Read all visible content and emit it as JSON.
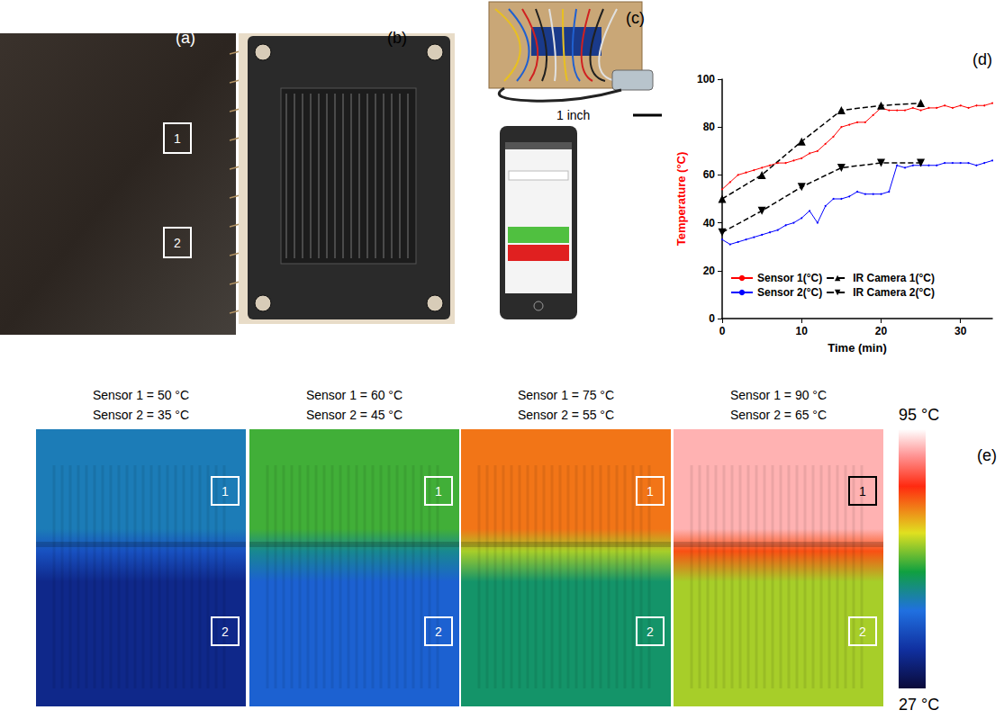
{
  "chart_data": {
    "type": "line",
    "x_label": "Time (min)",
    "y_label": "Temperature (°C)",
    "xlim": [
      0,
      34
    ],
    "xticks": [
      0,
      10,
      20,
      30
    ],
    "ylim": [
      0,
      100
    ],
    "yticks": [
      0,
      20,
      40,
      60,
      80,
      100
    ],
    "grid": false,
    "legend": "lower left",
    "series": [
      {
        "name": "Sensor 1(°C)",
        "color": "#ff0000",
        "marker": "circle",
        "line_style": "solid",
        "x": [
          0,
          1,
          2,
          3,
          4,
          5,
          6,
          7,
          8,
          9,
          10,
          11,
          12,
          13,
          14,
          15,
          16,
          17,
          18,
          19,
          20,
          21,
          22,
          23,
          24,
          25,
          26,
          27,
          28,
          29,
          30,
          31,
          32,
          33,
          34
        ],
        "values": [
          54,
          57,
          60,
          61,
          62,
          63,
          64,
          65,
          65,
          66,
          67,
          69,
          70,
          73,
          76,
          80,
          81,
          82,
          82,
          85,
          88,
          87,
          87,
          87,
          88,
          87,
          88,
          88,
          89,
          88,
          89,
          88,
          89,
          89,
          90
        ]
      },
      {
        "name": "Sensor 2(°C)",
        "color": "#0000ff",
        "marker": "circle",
        "line_style": "solid",
        "x": [
          0,
          1,
          2,
          3,
          4,
          5,
          6,
          7,
          8,
          9,
          10,
          11,
          12,
          13,
          14,
          15,
          16,
          17,
          18,
          19,
          20,
          21,
          22,
          23,
          24,
          25,
          26,
          27,
          28,
          29,
          30,
          31,
          32,
          33,
          34
        ],
        "values": [
          33,
          31,
          32,
          33,
          34,
          35,
          36,
          37,
          39,
          40,
          42,
          45,
          40,
          47,
          50,
          50,
          51,
          53,
          52,
          52,
          52,
          53,
          64,
          63,
          64,
          64,
          64,
          64,
          65,
          65,
          65,
          65,
          64,
          65,
          66
        ]
      },
      {
        "name": "IR Camera 1(°C)",
        "color": "#000000",
        "marker": "triangle",
        "line_style": "dashed",
        "x": [
          0,
          5,
          10,
          15,
          20,
          25
        ],
        "values": [
          50,
          60,
          74,
          87,
          89,
          90
        ]
      },
      {
        "name": "IR Camera 2(°C)",
        "color": "#000000",
        "marker": "triangle-down",
        "line_style": "dashed",
        "x": [
          0,
          5,
          10,
          15,
          20,
          25
        ],
        "values": [
          36,
          45,
          55,
          63,
          65,
          65
        ]
      }
    ]
  },
  "panels": {
    "a": {
      "label": "(a)",
      "boxes": [
        "1",
        "2"
      ]
    },
    "b": {
      "label": "(b)"
    },
    "c": {
      "label": "(c)",
      "scale_bar": "1 inch"
    },
    "d": {
      "label": "(d)"
    },
    "e": {
      "label": "(e)",
      "boxes": [
        "1",
        "2"
      ],
      "images": [
        {
          "sensor1": {
            "label": "Sensor 1 = 50 °C",
            "value": 50
          },
          "sensor2": {
            "label": "Sensor 2 = 35 °C",
            "value": 35
          }
        },
        {
          "sensor1": {
            "label": "Sensor 1 = 60 °C",
            "value": 60
          },
          "sensor2": {
            "label": "Sensor 2 = 45 °C",
            "value": 45
          }
        },
        {
          "sensor1": {
            "label": "Sensor 1 = 75 °C",
            "value": 75
          },
          "sensor2": {
            "label": "Sensor 2 = 55 °C",
            "value": 55
          }
        },
        {
          "sensor1": {
            "label": "Sensor 1 = 90 °C",
            "value": 90
          },
          "sensor2": {
            "label": "Sensor 2 = 65 °C",
            "value": 65
          }
        }
      ],
      "colorbar": {
        "range": [
          27,
          95
        ],
        "ticks": [
          {
            "value": 95,
            "label": "95 °C"
          },
          {
            "value": 27,
            "label": "27 °C"
          }
        ]
      }
    }
  }
}
